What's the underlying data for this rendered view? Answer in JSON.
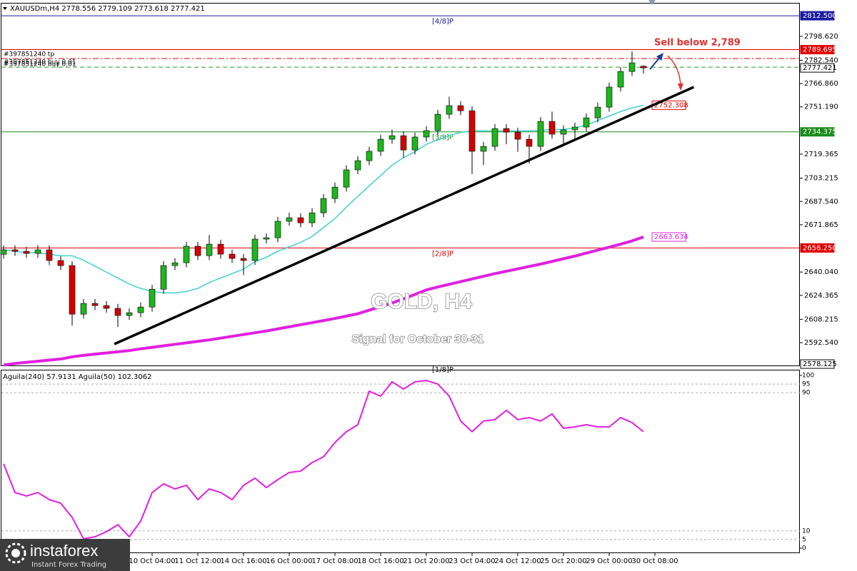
{
  "chart_data": {
    "type": "candlestick",
    "symbol_header": "XAUUSDm,H4  2778.556 2779.109 2773.618 2777.421",
    "title": "GOLD, H4",
    "subtitle": "Signal for October 30-31",
    "annotation": "Sell below 2,789",
    "order_labels": [
      "#397851240 tp",
      "#397851240 buy 0.01",
      "#397851240 buy 0.01"
    ],
    "categories": [
      null,
      null,
      null,
      null,
      null,
      null,
      null,
      null,
      null,
      null,
      null,
      null,
      null,
      "10 Oct 04:00",
      null,
      null,
      null,
      "11 Oct 12:00",
      null,
      null,
      null,
      "14 Oct 16:00",
      null,
      null,
      null,
      "16 Oct 00:00",
      null,
      null,
      null,
      "17 Oct 08:00",
      null,
      null,
      null,
      "18 Oct 16:00",
      null,
      null,
      null,
      "21 Oct 20:00",
      null,
      null,
      null,
      "23 Oct 04:00",
      null,
      null,
      null,
      "24 Oct 12:00",
      null,
      null,
      null,
      "25 Oct 20:00",
      null,
      null,
      null,
      "29 Oct 00:00",
      null,
      null,
      null,
      "30 Oct 08:00"
    ],
    "open": [
      2652.0,
      2655.0,
      2654.0,
      2652.6,
      2655.0,
      2647.8,
      2644.4,
      2611.7,
      2618.9,
      2617.5,
      2615.6,
      2610.8,
      2612.7,
      2616.5,
      2628.5,
      2644.4,
      2646.3,
      2657.4,
      2651.1,
      2658.8,
      2652.1,
      2649.2,
      2647.8,
      2662.2,
      2663.1,
      2674.2,
      2676.6,
      2673.2,
      2679.9,
      2689.5,
      2697.2,
      2708.8,
      2715.0,
      2721.3,
      2729.4,
      2731.8,
      2722.2,
      2730.9,
      2735.2,
      2746.2,
      2752.0,
      2748.6,
      2721.3,
      2724.6,
      2736.6,
      2734.2,
      2729.4,
      2724.6,
      2741.4,
      2732.8,
      2735.7,
      2737.6,
      2743.8,
      2751.0,
      2764.5,
      2775.0,
      2778.556,
      null
    ],
    "high": [
      2658,
      2658,
      2657,
      2658,
      2658,
      2650.8,
      2647.4,
      2621.9,
      2621.9,
      2620.5,
      2618.6,
      2615.7,
      2619.5,
      2631.5,
      2647.4,
      2649.3,
      2660.4,
      2660.4,
      2665,
      2661.8,
      2655.1,
      2652.2,
      2665.2,
      2666.1,
      2677.2,
      2680,
      2679.6,
      2682.9,
      2692.5,
      2700.2,
      2711.8,
      2718,
      2724.3,
      2732.4,
      2736,
      2734.8,
      2733.9,
      2738.2,
      2749.2,
      2758,
      2755,
      2751.6,
      2727.6,
      2739.6,
      2739.6,
      2737.2,
      2732.4,
      2744.4,
      2748,
      2738.7,
      2740.6,
      2746.8,
      2754,
      2767.5,
      2778,
      2788.5,
      2779.109,
      null
    ],
    "low": [
      2649,
      2651,
      2649.6,
      2649.6,
      2644.8,
      2641.4,
      2604,
      2608.7,
      2614.5,
      2612.6,
      2603,
      2607.8,
      2609.7,
      2613.5,
      2625.5,
      2641.4,
      2643.3,
      2648.1,
      2648.1,
      2649.1,
      2646.2,
      2638,
      2644.8,
      2659.2,
      2660.1,
      2671.2,
      2670.2,
      2670.2,
      2676.9,
      2686.5,
      2694.2,
      2705.8,
      2712,
      2718.3,
      2726.4,
      2717,
      2719.2,
      2727.9,
      2732.2,
      2743.2,
      2745.6,
      2706,
      2712,
      2721.6,
      2726,
      2721,
      2713,
      2721.6,
      2729.8,
      2725,
      2730,
      2734.6,
      2740.8,
      2748,
      2761.5,
      2772,
      2773.618,
      null
    ],
    "close": [
      2655.0,
      2654.0,
      2652.6,
      2655.0,
      2647.8,
      2644.4,
      2611.7,
      2618.9,
      2617.5,
      2615.6,
      2610.8,
      2612.7,
      2616.5,
      2628.5,
      2644.4,
      2646.3,
      2657.4,
      2651.1,
      2658.8,
      2652.1,
      2649.2,
      2647.8,
      2662.2,
      2663.1,
      2674.2,
      2676.6,
      2673.2,
      2679.9,
      2689.5,
      2697.2,
      2708.8,
      2715.0,
      2721.3,
      2729.4,
      2731.8,
      2722.2,
      2730.9,
      2735.2,
      2746.2,
      2752.0,
      2748.6,
      2721.3,
      2724.6,
      2736.6,
      2734.2,
      2729.4,
      2724.6,
      2741.4,
      2732.8,
      2735.7,
      2737.6,
      2743.8,
      2751.0,
      2764.5,
      2775.0,
      2780.8,
      2777.421,
      null
    ],
    "up_color": "#1fb51f",
    "down_color": "#d40000",
    "series": [
      {
        "color": "#40d0d0",
        "values": [
          2655,
          2654,
          2653,
          2653,
          2652,
          2651,
          2651,
          2648,
          2644,
          2640,
          2636,
          2632,
          2629,
          2627,
          2626,
          2626,
          2627,
          2629,
          2633,
          2636,
          2639,
          2642,
          2647,
          2650,
          2654,
          2657,
          2660,
          2664,
          2670,
          2676,
          2683.8,
          2691,
          2698,
          2705,
          2712,
          2717,
          2721,
          2726,
          2729,
          2732,
          2734,
          2735,
          2735,
          2735,
          2735,
          2735,
          2735,
          2735.5,
          2736,
          2736,
          2737,
          2739,
          2742,
          2745,
          2748,
          2750.5,
          2752.308,
          null
        ]
      },
      {
        "color": "#e020e0",
        "values": [
          2577.5,
          2578.5,
          2579.3,
          2580,
          2580.8,
          2581.5,
          2583,
          2584,
          2584.8,
          2585.6,
          2586.4,
          2587.2,
          2588.4,
          2589.4,
          2590.4,
          2591.4,
          2592.4,
          2593.4,
          2594.4,
          2595.6,
          2596.8,
          2598,
          2599.2,
          2600.4,
          2601.8,
          2603.2,
          2604.6,
          2606,
          2607.4,
          2608.8,
          2610.4,
          2612,
          2614.4,
          2616.8,
          2619.2,
          2622,
          2625,
          2628,
          2630,
          2631.8,
          2633.6,
          2635.4,
          2637.2,
          2639,
          2640.6,
          2642.2,
          2643.8,
          2645.4,
          2647.2,
          2649,
          2650.8,
          2652.8,
          2654.8,
          2656.8,
          2658.8,
          2661,
          2663.634,
          null
        ]
      }
    ],
    "trendline": {
      "color": "#000000",
      "x": [
        9.7,
        60.4
      ],
      "y": [
        2591.6,
        2764.5
      ]
    },
    "levels": [
      {
        "value": 2812.5,
        "label": "2812.500",
        "tag": "[4/8]P",
        "color": "#1a1aa0",
        "line": "solid",
        "box": "fill"
      },
      {
        "value": 2789.695,
        "label": "2789.695",
        "color": "#e00000",
        "line": "solid",
        "box": "fill"
      },
      {
        "value": 2783.7,
        "color": "#e00000",
        "line": "dashdot"
      },
      {
        "value": 2777.9,
        "color": "#1fa01f",
        "line": "dashed"
      },
      {
        "value": 2777.421,
        "label": "2777.421",
        "color": "#000000",
        "line": "none",
        "box": "outline"
      },
      {
        "value": 2752.308,
        "label": "2752.308",
        "color": "#e00000",
        "line": "none",
        "box": "inline"
      },
      {
        "value": 2734.375,
        "label": "2734.375",
        "tag": "[3/8]P",
        "color": "#1a8a1a",
        "line": "solid",
        "box": "fill"
      },
      {
        "value": 2663.634,
        "label": "2663.634",
        "color": "#e020e0",
        "line": "none",
        "box": "inline"
      },
      {
        "value": 2656.25,
        "label": "2656.250",
        "tag": "[2/8]P",
        "color": "#e00000",
        "line": "solid",
        "box": "fill"
      },
      {
        "value": 2578.125,
        "label": "2578.125",
        "tag": "[1/8]P",
        "color": "#000000",
        "line": "none",
        "box": "outline"
      }
    ],
    "ylim": [
      2577.2,
      2823.1
    ],
    "yticks": [
      {
        "value": 2798.62,
        "label": "2798.620"
      },
      {
        "value": 2782.54,
        "label": "2782.540"
      },
      {
        "value": 2766.86,
        "label": "2766.860"
      },
      {
        "value": 2751.19,
        "label": "2751.190"
      },
      {
        "value": 2719.365,
        "label": "2719.365"
      },
      {
        "value": 2703.215,
        "label": "2703.215"
      },
      {
        "value": 2687.54,
        "label": "2687.540"
      },
      {
        "value": 2671.865,
        "label": "2671.865"
      },
      {
        "value": 2640.04,
        "label": "2640.040"
      },
      {
        "value": 2624.365,
        "label": "2624.365"
      },
      {
        "value": 2608.215,
        "label": "2608.215"
      },
      {
        "value": 2592.54,
        "label": "2592.540"
      }
    ],
    "indicator": {
      "header": "Aguila(240) 57.9131  Aguila(50) 102.3062",
      "color": "#e020e0",
      "values": [
        48.8,
        32.2,
        30.2,
        32.2,
        28.1,
        26.0,
        17.8,
        5.4,
        6.6,
        9.5,
        13.6,
        6.6,
        15.7,
        32.2,
        37.2,
        34.3,
        36.4,
        28.1,
        34.3,
        32.2,
        28.1,
        36.4,
        40.5,
        35.1,
        39.7,
        43.8,
        44.6,
        49.6,
        52.9,
        61.2,
        67.4,
        71.5,
        90.9,
        88.0,
        96.3,
        92.1,
        96.3,
        97.1,
        95.0,
        88.0,
        73.6,
        67.4,
        73.6,
        74.4,
        79.8,
        74.4,
        75.6,
        73.6,
        77.7,
        69.4,
        70.2,
        71.5,
        70.2,
        70.2,
        75.6,
        72.7,
        67.4,
        null
      ],
      "ylim": [
        0,
        100
      ],
      "yticks": [
        100,
        95,
        90,
        10,
        5,
        0
      ]
    },
    "brand": "instaforex",
    "brand_tagline": "Instant Forex Trading"
  }
}
